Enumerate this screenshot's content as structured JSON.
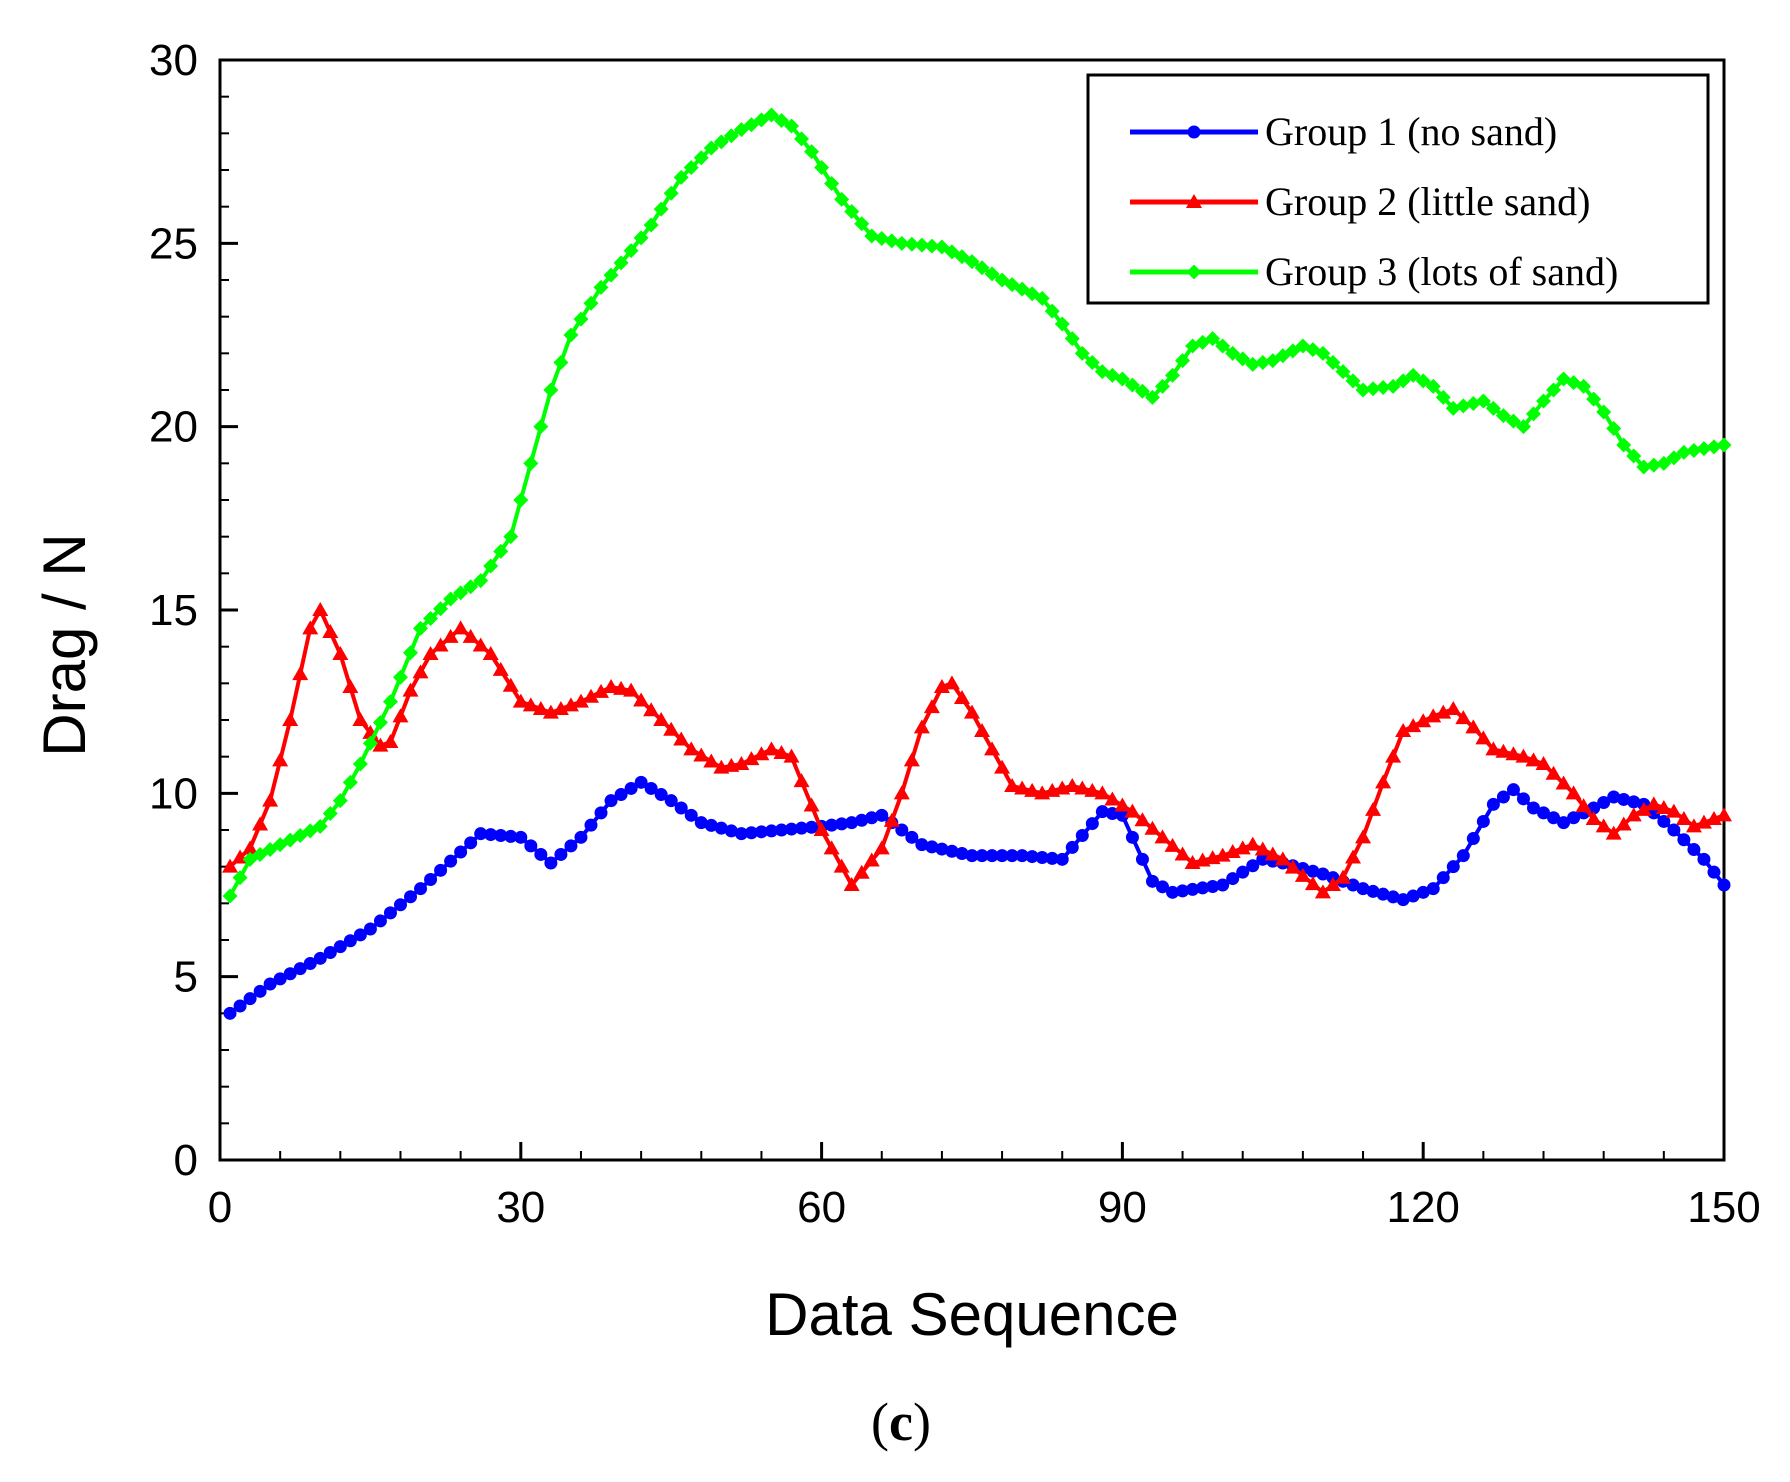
{
  "chart_data": {
    "type": "line",
    "title": "",
    "panel_label_paren_open": "(",
    "panel_label_letter": "c",
    "panel_label_paren_close": ")",
    "xlabel": "Data Sequence",
    "ylabel": "Drag / N",
    "xlim": [
      0,
      150
    ],
    "ylim": [
      0,
      30
    ],
    "xticks": [
      0,
      30,
      60,
      90,
      120,
      150
    ],
    "yticks": [
      0,
      5,
      10,
      15,
      20,
      25,
      30
    ],
    "grid": false,
    "legend_position": "top-right",
    "series": [
      {
        "name": "Group 1 (no sand)",
        "color": "#0000ff",
        "marker": "circle",
        "keypoints": [
          [
            1,
            4.0
          ],
          [
            5,
            4.8
          ],
          [
            10,
            5.5
          ],
          [
            15,
            6.3
          ],
          [
            20,
            7.4
          ],
          [
            24,
            8.4
          ],
          [
            26,
            8.9
          ],
          [
            30,
            8.8
          ],
          [
            33,
            8.1
          ],
          [
            36,
            8.8
          ],
          [
            39,
            9.8
          ],
          [
            42,
            10.3
          ],
          [
            45,
            9.8
          ],
          [
            48,
            9.2
          ],
          [
            52,
            8.9
          ],
          [
            56,
            9.0
          ],
          [
            60,
            9.1
          ],
          [
            63,
            9.2
          ],
          [
            66,
            9.4
          ],
          [
            70,
            8.6
          ],
          [
            75,
            8.3
          ],
          [
            80,
            8.3
          ],
          [
            84,
            8.2
          ],
          [
            88,
            9.5
          ],
          [
            90,
            9.4
          ],
          [
            93,
            7.6
          ],
          [
            95,
            7.3
          ],
          [
            100,
            7.5
          ],
          [
            104,
            8.2
          ],
          [
            106,
            8.1
          ],
          [
            110,
            7.8
          ],
          [
            114,
            7.4
          ],
          [
            118,
            7.1
          ],
          [
            121,
            7.4
          ],
          [
            124,
            8.3
          ],
          [
            127,
            9.7
          ],
          [
            129,
            10.1
          ],
          [
            131,
            9.6
          ],
          [
            134,
            9.2
          ],
          [
            137,
            9.6
          ],
          [
            139,
            9.9
          ],
          [
            142,
            9.7
          ],
          [
            145,
            9.0
          ],
          [
            148,
            8.2
          ],
          [
            150,
            7.5
          ]
        ]
      },
      {
        "name": "Group 2 (little sand)",
        "color": "#ff0000",
        "marker": "triangle",
        "keypoints": [
          [
            1,
            8.0
          ],
          [
            3,
            8.5
          ],
          [
            5,
            9.8
          ],
          [
            7,
            12.0
          ],
          [
            9,
            14.5
          ],
          [
            10,
            15.0
          ],
          [
            12,
            13.8
          ],
          [
            14,
            12.0
          ],
          [
            16,
            11.3
          ],
          [
            17,
            11.4
          ],
          [
            19,
            12.8
          ],
          [
            21,
            13.8
          ],
          [
            24,
            14.5
          ],
          [
            27,
            13.8
          ],
          [
            30,
            12.5
          ],
          [
            33,
            12.2
          ],
          [
            36,
            12.5
          ],
          [
            39,
            12.9
          ],
          [
            41,
            12.8
          ],
          [
            44,
            12.0
          ],
          [
            47,
            11.2
          ],
          [
            50,
            10.7
          ],
          [
            52,
            10.8
          ],
          [
            55,
            11.2
          ],
          [
            57,
            11.0
          ],
          [
            60,
            9.0
          ],
          [
            63,
            7.5
          ],
          [
            66,
            8.5
          ],
          [
            68,
            10.0
          ],
          [
            70,
            11.8
          ],
          [
            72,
            12.9
          ],
          [
            73,
            13.0
          ],
          [
            75,
            12.2
          ],
          [
            77,
            11.2
          ],
          [
            79,
            10.2
          ],
          [
            82,
            10.0
          ],
          [
            85,
            10.2
          ],
          [
            88,
            10.0
          ],
          [
            91,
            9.5
          ],
          [
            94,
            8.8
          ],
          [
            97,
            8.1
          ],
          [
            100,
            8.3
          ],
          [
            103,
            8.6
          ],
          [
            106,
            8.2
          ],
          [
            110,
            7.3
          ],
          [
            112,
            7.7
          ],
          [
            114,
            8.8
          ],
          [
            116,
            10.3
          ],
          [
            118,
            11.7
          ],
          [
            121,
            12.1
          ],
          [
            123,
            12.3
          ],
          [
            125,
            11.8
          ],
          [
            127,
            11.2
          ],
          [
            130,
            11.0
          ],
          [
            132,
            10.8
          ],
          [
            135,
            10.0
          ],
          [
            137,
            9.3
          ],
          [
            139,
            8.9
          ],
          [
            141,
            9.4
          ],
          [
            143,
            9.7
          ],
          [
            145,
            9.5
          ],
          [
            147,
            9.1
          ],
          [
            150,
            9.4
          ]
        ]
      },
      {
        "name": "Group 3 (lots of sand)",
        "color": "#00ff00",
        "marker": "diamond",
        "keypoints": [
          [
            1,
            7.2
          ],
          [
            3,
            8.2
          ],
          [
            6,
            8.6
          ],
          [
            10,
            9.1
          ],
          [
            12,
            9.8
          ],
          [
            14,
            10.8
          ],
          [
            17,
            12.5
          ],
          [
            20,
            14.5
          ],
          [
            23,
            15.3
          ],
          [
            26,
            15.8
          ],
          [
            29,
            17.0
          ],
          [
            31,
            19.0
          ],
          [
            33,
            21.0
          ],
          [
            35,
            22.5
          ],
          [
            38,
            23.8
          ],
          [
            41,
            24.8
          ],
          [
            43,
            25.5
          ],
          [
            46,
            26.8
          ],
          [
            49,
            27.6
          ],
          [
            52,
            28.1
          ],
          [
            55,
            28.5
          ],
          [
            57,
            28.2
          ],
          [
            59,
            27.5
          ],
          [
            62,
            26.2
          ],
          [
            65,
            25.2
          ],
          [
            68,
            25.0
          ],
          [
            72,
            24.9
          ],
          [
            75,
            24.5
          ],
          [
            78,
            24.0
          ],
          [
            82,
            23.5
          ],
          [
            84,
            22.8
          ],
          [
            86,
            22.0
          ],
          [
            88,
            21.5
          ],
          [
            90,
            21.3
          ],
          [
            93,
            20.8
          ],
          [
            95,
            21.4
          ],
          [
            97,
            22.2
          ],
          [
            99,
            22.4
          ],
          [
            101,
            22.0
          ],
          [
            103,
            21.7
          ],
          [
            105,
            21.8
          ],
          [
            108,
            22.2
          ],
          [
            110,
            22.0
          ],
          [
            112,
            21.5
          ],
          [
            114,
            21.0
          ],
          [
            117,
            21.1
          ],
          [
            119,
            21.4
          ],
          [
            121,
            21.1
          ],
          [
            123,
            20.5
          ],
          [
            126,
            20.7
          ],
          [
            128,
            20.3
          ],
          [
            130,
            20.0
          ],
          [
            132,
            20.7
          ],
          [
            134,
            21.3
          ],
          [
            136,
            21.1
          ],
          [
            138,
            20.4
          ],
          [
            140,
            19.5
          ],
          [
            142,
            18.9
          ],
          [
            144,
            19.0
          ],
          [
            146,
            19.3
          ],
          [
            148,
            19.4
          ],
          [
            150,
            19.5
          ]
        ]
      }
    ]
  }
}
